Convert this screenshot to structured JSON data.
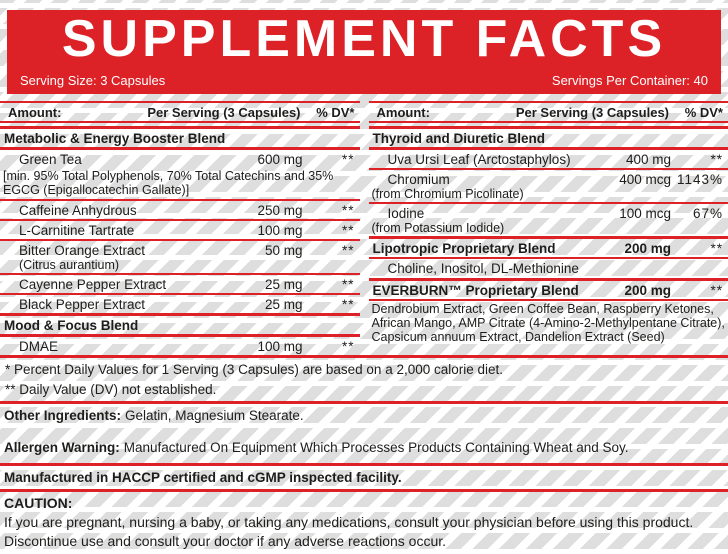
{
  "colors": {
    "red": "#dc2127",
    "stripe": "#dedede",
    "text": "#1d1d1b"
  },
  "header": {
    "title": "SUPPLEMENT FACTS",
    "serving_size": "Serving Size: 3 Capsules",
    "servings_per_container": "Servings Per Container: 40"
  },
  "columns": {
    "left": {
      "header": {
        "amount": "Amount:",
        "per_serving": "Per Serving (3 Capsules)",
        "dv": "% DV*"
      },
      "rows": [
        {
          "type": "section",
          "sep": "double",
          "name": "Metabolic & Energy Booster Blend"
        },
        {
          "type": "ing",
          "sep": "thick",
          "name": "Green Tea",
          "amount": "600 mg",
          "dv": "**"
        },
        {
          "type": "note",
          "sep": "none",
          "text": "[min. 95% Total Polyphenols, 70% Total Catechins and 35% EGCG (Epigallocatechin Gallate)]"
        },
        {
          "type": "ing",
          "sep": "thin",
          "name": "Caffeine Anhydrous",
          "amount": "250 mg",
          "dv": "**"
        },
        {
          "type": "ing",
          "sep": "thin",
          "name": "L-Carnitine Tartrate",
          "amount": "100 mg",
          "dv": "**"
        },
        {
          "type": "ing",
          "sep": "thin",
          "name": "Bitter Orange Extract",
          "sub": "(Citrus aurantium)",
          "sub_indent": true,
          "amount": "50 mg",
          "dv": "**"
        },
        {
          "type": "ing",
          "sep": "thin",
          "name": "Cayenne Pepper Extract",
          "amount": "25 mg",
          "dv": "**"
        },
        {
          "type": "ing",
          "sep": "thin",
          "name": "Black Pepper Extract",
          "amount": "25 mg",
          "dv": "**"
        },
        {
          "type": "section",
          "sep": "thick",
          "name": "Mood & Focus Blend"
        },
        {
          "type": "ing",
          "sep": "thick",
          "name": "DMAE",
          "amount": "100 mg",
          "dv": "**"
        }
      ]
    },
    "right": {
      "header": {
        "amount": "Amount:",
        "per_serving": "Per Serving (3 Capsules)",
        "dv": "% DV*"
      },
      "rows": [
        {
          "type": "section",
          "sep": "double",
          "name": "Thyroid and Diuretic Blend"
        },
        {
          "type": "ing",
          "sep": "thick",
          "name": "Uva Ursi Leaf (Arctostaphylos)",
          "amount": "400 mg",
          "dv": "**"
        },
        {
          "type": "ing",
          "sep": "thin",
          "name": "Chromium",
          "sub": "(from Chromium Picolinate)",
          "sub_indent": false,
          "amount": "400 mcg",
          "dv": "1143%"
        },
        {
          "type": "ing",
          "sep": "thin",
          "name": "Iodine",
          "sub": "(from Potassium Iodide)",
          "sub_indent": false,
          "amount": "100 mcg",
          "dv": "67%"
        },
        {
          "type": "ing",
          "sep": "thick",
          "bold": true,
          "flush": true,
          "name": "Lipotropic Proprietary Blend",
          "amount": "200 mg",
          "dv": "**"
        },
        {
          "type": "text",
          "sep": "thin",
          "text": "Choline, Inositol, DL-Methionine"
        },
        {
          "type": "ing",
          "sep": "thick",
          "bold": true,
          "flush": true,
          "name": "EVERBURN™ Proprietary Blend",
          "amount": "200 mg",
          "dv": "**"
        },
        {
          "type": "note",
          "sep": "thin",
          "text": "Dendrobium Extract, Green Coffee Bean, Raspberry Ketones, African Mango, AMP Citrate (4-Amino-2-Methylpentane Citrate), Capsicum annuum Extract, Dandelion Extract (Seed)"
        }
      ]
    }
  },
  "footnotes": [
    "* Percent Daily Values for 1 Serving (3 Capsules) are based on a 2,000 calorie diet.",
    "** Daily Value (DV) not established."
  ],
  "other_ingredients": {
    "label": "Other Ingredients:",
    "text": "Gelatin, Magnesium Stearate."
  },
  "allergen": {
    "label": "Allergen Warning:",
    "text": "Manufactured On Equipment Which Processes Products Containing Wheat and Soy."
  },
  "manufactured": "Manufactured in HACCP certified and cGMP inspected facility.",
  "caution": {
    "label": "CAUTION:",
    "text": "If you are pregnant, nursing a baby, or taking any medications, consult your physician before using this product. Discontinue use and consult your doctor if any adverse reactions occur."
  }
}
